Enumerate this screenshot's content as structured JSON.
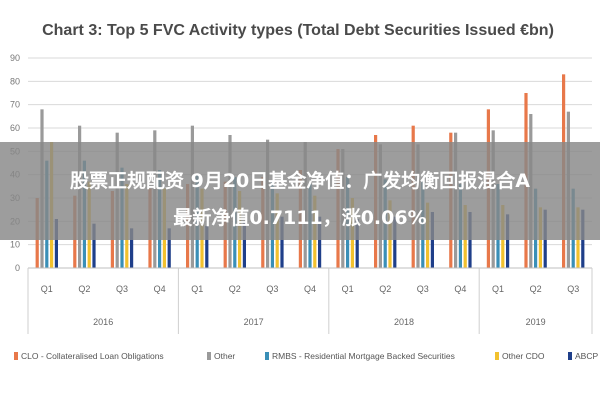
{
  "chart_data": {
    "type": "bar",
    "title": "Chart 3: Top 5 FVC Activity types (Total Debt Securities Issued €bn)",
    "ylim": [
      0,
      90
    ],
    "yticks": [
      0,
      10,
      20,
      30,
      40,
      50,
      60,
      70,
      80,
      90
    ],
    "grid": true,
    "legend_position": "bottom",
    "categories": [
      "Q1",
      "Q2",
      "Q3",
      "Q4",
      "Q1",
      "Q2",
      "Q3",
      "Q4",
      "Q1",
      "Q2",
      "Q3",
      "Q4",
      "Q1",
      "Q2",
      "Q3"
    ],
    "groups": [
      {
        "label": "2016",
        "count": 4
      },
      {
        "label": "2017",
        "count": 4
      },
      {
        "label": "2018",
        "count": 4
      },
      {
        "label": "2019",
        "count": 3
      }
    ],
    "series": [
      {
        "name": "CLO - Collateralised Loan Obligations",
        "color": "#e8784a",
        "values": [
          30,
          31,
          33,
          34,
          36,
          37,
          39,
          42,
          51,
          57,
          61,
          58,
          68,
          75,
          83
        ]
      },
      {
        "name": "Other",
        "color": "#9a9a9a",
        "values": [
          68,
          61,
          58,
          59,
          61,
          57,
          55,
          54,
          51,
          53,
          53,
          58,
          59,
          66,
          67
        ]
      },
      {
        "name": "RMBS - Residential Mortgage Backed Securities",
        "color": "#3a8fb7",
        "values": [
          46,
          46,
          43,
          42,
          40,
          39,
          37,
          36,
          39,
          38,
          37,
          36,
          36,
          34,
          34
        ]
      },
      {
        "name": "Other CDO",
        "color": "#f2c12e",
        "values": [
          54,
          37,
          36,
          34,
          34,
          33,
          32,
          31,
          30,
          29,
          28,
          27,
          27,
          26,
          26
        ]
      },
      {
        "name": "ABCP",
        "color": "#1f3f8a",
        "values": [
          21,
          19,
          17,
          17,
          18,
          20,
          22,
          22,
          21,
          22,
          24,
          24,
          23,
          25,
          25
        ]
      }
    ]
  },
  "overlay": {
    "line1": "股票正规配资 9月20日基金净值：广发均衡回报混合A",
    "line2": "最新净值0.7111，涨0.06%"
  }
}
